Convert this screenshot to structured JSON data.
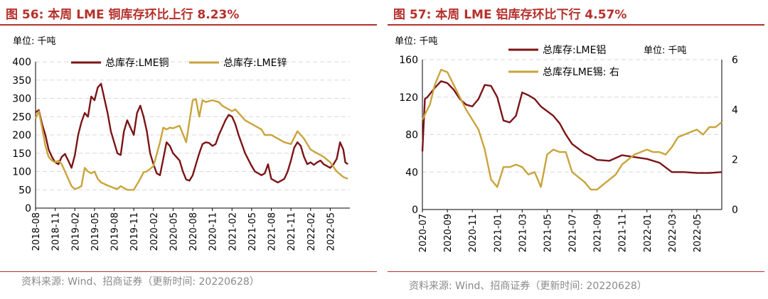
{
  "panels": [
    {
      "title": "图 56:  本周 LME 铜库存环比上行 8.23%",
      "source": "资料来源: Wind、招商证券（更新时间: 20220628）"
    },
    {
      "title": "图 57:  本周 LME 铝库存环比下行 4.57%",
      "source": "资料来源: Wind、招商证券（更新时间: 20220628）"
    }
  ],
  "colors": {
    "title": "#b5302b",
    "series_dark": "#7b1416",
    "series_gold": "#c9a43c",
    "grid": "#d9d9d9"
  },
  "chart_data": [
    {
      "type": "line",
      "unit_label": "单位:  千吨",
      "ylim": [
        0,
        400
      ],
      "yticks": [
        "0",
        "50",
        "100",
        "150",
        "200",
        "250",
        "300",
        "350",
        "400"
      ],
      "x_domain": [
        0,
        48
      ],
      "xtick_labels": [
        "2018-08",
        "2018-11",
        "2019-02",
        "2019-05",
        "2019-08",
        "2019-11",
        "2020-02",
        "2020-05",
        "2020-08",
        "2020-11",
        "2021-02",
        "2021-05",
        "2021-08",
        "2021-11",
        "2022-02",
        "2022-05"
      ],
      "series": [
        {
          "name": "总库存:LME铜",
          "color": "#7b1416",
          "x": [
            0,
            0.5,
            1,
            1.5,
            2,
            2.5,
            3,
            3.5,
            4,
            4.5,
            5,
            5.5,
            6,
            6.5,
            7,
            7.5,
            8,
            8.5,
            9,
            9.5,
            10,
            10.5,
            11,
            11.5,
            12,
            12.5,
            13,
            13.5,
            14,
            15,
            15.5,
            16,
            16.5,
            17,
            17.5,
            18,
            18.5,
            19,
            19.5,
            20,
            20.5,
            21,
            22,
            22.5,
            23,
            23.5,
            24,
            24.5,
            25,
            25.5,
            26,
            26.5,
            27,
            27.5,
            28,
            28.5,
            29,
            29.5,
            30,
            30.5,
            31,
            32,
            33,
            33.5,
            34,
            34.5,
            35,
            35.5,
            36,
            36.5,
            37,
            37.5,
            38,
            38.5,
            39,
            39.5,
            40,
            40.5,
            41,
            41.5,
            42,
            42.5,
            43,
            43.5,
            44,
            44.5,
            45,
            45.5,
            46,
            46.5,
            47,
            47.3,
            47.7
          ],
          "values": [
            262,
            268,
            230,
            200,
            160,
            140,
            125,
            120,
            140,
            148,
            130,
            110,
            145,
            200,
            235,
            260,
            250,
            305,
            295,
            330,
            340,
            300,
            260,
            210,
            180,
            150,
            145,
            210,
            240,
            200,
            260,
            280,
            250,
            210,
            150,
            120,
            95,
            90,
            135,
            180,
            170,
            150,
            130,
            100,
            78,
            75,
            90,
            120,
            150,
            175,
            180,
            178,
            170,
            175,
            200,
            220,
            240,
            255,
            250,
            230,
            200,
            150,
            115,
            100,
            95,
            90,
            95,
            120,
            80,
            75,
            70,
            75,
            80,
            100,
            130,
            165,
            180,
            170,
            140,
            120,
            125,
            118,
            125,
            130,
            120,
            115,
            110,
            120,
            135,
            180,
            160,
            125,
            120
          ]
        },
        {
          "name": "总库存:LME锌",
          "color": "#c9a43c",
          "x": [
            0,
            0.5,
            1,
            1.5,
            2,
            2.5,
            3,
            3.5,
            4,
            5,
            5.5,
            6,
            6.5,
            7,
            7.5,
            8,
            8.5,
            9,
            9.5,
            10,
            11,
            12,
            12.5,
            13,
            13.5,
            14,
            15,
            16,
            16.5,
            17,
            18,
            19,
            19.5,
            20,
            20.5,
            21,
            21.5,
            22,
            23,
            24,
            24.5,
            25,
            25.5,
            26,
            27,
            28,
            28.5,
            29,
            30,
            30.5,
            31,
            32,
            33,
            34,
            34.5,
            35,
            36,
            37,
            38,
            39,
            40,
            41,
            42,
            43,
            43.5,
            44,
            45,
            46,
            47,
            47.7
          ],
          "values": [
            245,
            265,
            220,
            170,
            140,
            130,
            125,
            130,
            120,
            80,
            60,
            52,
            55,
            60,
            110,
            100,
            95,
            100,
            80,
            70,
            62,
            55,
            52,
            60,
            55,
            50,
            50,
            80,
            98,
            100,
            115,
            180,
            220,
            215,
            220,
            218,
            222,
            225,
            180,
            295,
            298,
            250,
            295,
            290,
            295,
            290,
            280,
            275,
            265,
            270,
            260,
            240,
            230,
            220,
            215,
            200,
            200,
            190,
            180,
            175,
            210,
            190,
            160,
            150,
            145,
            140,
            125,
            100,
            85,
            80
          ]
        }
      ]
    },
    {
      "type": "line",
      "unit_label": "单位:  千吨",
      "unit_label_right": "单位:  千吨",
      "ylim": [
        0,
        160
      ],
      "yticks": [
        "0",
        "40",
        "80",
        "120",
        "160"
      ],
      "y2lim": [
        0,
        6
      ],
      "y2ticks": [
        "0",
        "2",
        "4",
        "6"
      ],
      "x_domain": [
        0,
        24
      ],
      "xtick_labels": [
        "2020-07",
        "2020-09",
        "2020-11",
        "2021-01",
        "2021-03",
        "2021-05",
        "2021-07",
        "2021-09",
        "2021-11",
        "2022-01",
        "2022-03",
        "2022-05"
      ],
      "series": [
        {
          "name": "总库存:LME铝",
          "axis": "left",
          "color": "#7b1416",
          "x": [
            0,
            0.2,
            0.4,
            1,
            1.5,
            2,
            2.5,
            3,
            3.5,
            4,
            4.5,
            5,
            5.5,
            6,
            6.5,
            7,
            7.5,
            8,
            8.5,
            9,
            9.5,
            10,
            10.5,
            11,
            11.5,
            12,
            12.5,
            13,
            13.5,
            14,
            15,
            16,
            17,
            18,
            19,
            20,
            21,
            22,
            23,
            24
          ],
          "values": [
            62,
            118,
            120,
            130,
            137,
            135,
            128,
            118,
            112,
            110,
            118,
            133,
            132,
            120,
            95,
            93,
            100,
            125,
            122,
            118,
            110,
            105,
            100,
            92,
            80,
            70,
            65,
            60,
            57,
            53,
            52,
            58,
            56,
            54,
            50,
            40,
            40,
            39,
            39,
            40
          ]
        },
        {
          "name": "总库存LME锡: 右",
          "axis": "right",
          "color": "#c9a43c",
          "x": [
            0,
            0.2,
            0.6,
            1,
            1.5,
            2,
            2.5,
            3,
            3.5,
            4,
            4.5,
            5,
            5.5,
            6,
            6.5,
            7,
            7.5,
            8,
            8.5,
            9,
            9.5,
            10,
            10.5,
            11,
            11.5,
            12,
            12.5,
            13,
            13.5,
            14,
            14.5,
            15,
            15.5,
            16,
            16.5,
            17,
            17.5,
            18,
            18.5,
            19,
            19.5,
            20,
            20.5,
            21,
            21.5,
            22,
            22.5,
            23,
            23.5,
            24
          ],
          "values": [
            3.6,
            3.8,
            4.2,
            5.0,
            5.6,
            5.5,
            5.0,
            4.5,
            4.0,
            3.6,
            3.2,
            2.4,
            1.2,
            0.9,
            1.7,
            1.7,
            1.8,
            1.7,
            1.4,
            1.5,
            0.9,
            2.2,
            2.4,
            2.3,
            2.3,
            1.5,
            1.3,
            1.1,
            0.8,
            0.8,
            1.0,
            1.2,
            1.4,
            1.8,
            2.0,
            2.2,
            2.3,
            2.4,
            2.3,
            2.3,
            2.2,
            2.5,
            2.9,
            3.0,
            3.1,
            3.2,
            3.0,
            3.3,
            3.3,
            3.5
          ]
        }
      ]
    }
  ]
}
